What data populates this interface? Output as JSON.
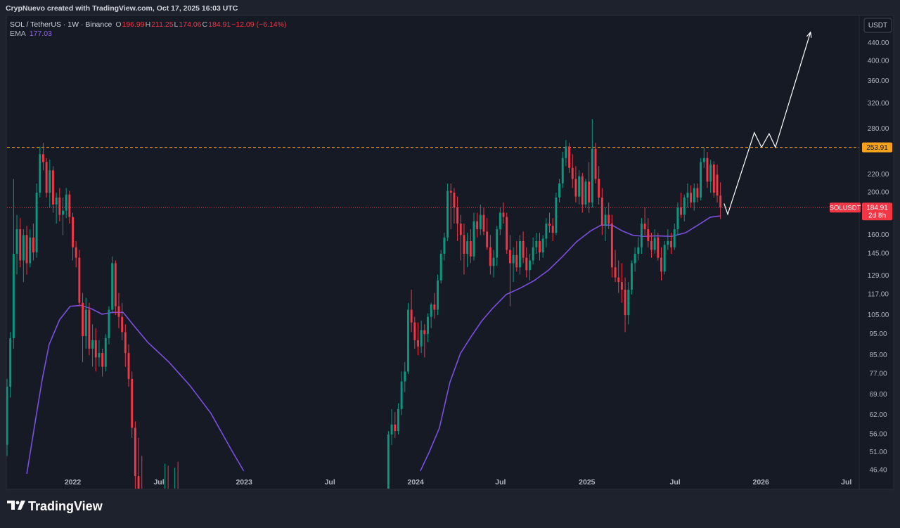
{
  "header": "CrypNuevo created with TradingView.com, Oct 17, 2025 16:03 UTC",
  "footer": {
    "brand": "TradingView"
  },
  "chart_data": {
    "type": "candlestick",
    "symbol": "SOL / TetherUS · 1W · Binance",
    "ohlc_letters": [
      "O",
      "H",
      "L",
      "C"
    ],
    "change": "−12.09 (−6.14%)",
    "indicator": "EMA",
    "currency": "USDT",
    "pair_label": "SOLUSDT",
    "countdown": "2d 8h",
    "up_color": "#089981",
    "down_color": "#f23645",
    "log_scale": true,
    "grid": false,
    "xlim": [
      0,
      259.2
    ],
    "ylim": [
      42.1,
      503
    ],
    "xticks": [
      {
        "value": 20,
        "label": "2022"
      },
      {
        "value": 46.2,
        "label": "Jul"
      },
      {
        "value": 72.1,
        "label": "2023"
      },
      {
        "value": 98.2,
        "label": "Jul"
      },
      {
        "value": 124.3,
        "label": "2024"
      },
      {
        "value": 150.1,
        "label": "Jul"
      },
      {
        "value": 176.4,
        "label": "2025"
      },
      {
        "value": 203.2,
        "label": "Jul"
      },
      {
        "value": 229.3,
        "label": "2026"
      },
      {
        "value": 255.3,
        "label": "Jul"
      }
    ],
    "yticks": [
      {
        "value": 440,
        "label": "440.00"
      },
      {
        "value": 400,
        "label": "400.00"
      },
      {
        "value": 360,
        "label": "360.00"
      },
      {
        "value": 320,
        "label": "320.00"
      },
      {
        "value": 280,
        "label": "280.00"
      },
      {
        "value": 220,
        "label": "220.00"
      },
      {
        "value": 200,
        "label": "200.00"
      },
      {
        "value": 160,
        "label": "160.00"
      },
      {
        "value": 145,
        "label": "145.00"
      },
      {
        "value": 129,
        "label": "129.00"
      },
      {
        "value": 117,
        "label": "117.00"
      },
      {
        "value": 105,
        "label": "105.00"
      },
      {
        "value": 95,
        "label": "95.00"
      },
      {
        "value": 85,
        "label": "85.00"
      },
      {
        "value": 77,
        "label": "77.00"
      },
      {
        "value": 69,
        "label": "69.00"
      },
      {
        "value": 62,
        "label": "62.00"
      },
      {
        "value": 56,
        "label": "56.00"
      },
      {
        "value": 51,
        "label": "51.00"
      },
      {
        "value": 46.4,
        "label": "46.40"
      }
    ],
    "resistance": 253.91,
    "resistance_color": "#f7a21b",
    "ohlc": [
      [
        53,
        75,
        50,
        72
      ],
      [
        72,
        96,
        68,
        93
      ],
      [
        93,
        215,
        88,
        145
      ],
      [
        145,
        178,
        130,
        165
      ],
      [
        165,
        175,
        135,
        140
      ],
      [
        140,
        165,
        125,
        160
      ],
      [
        160,
        168,
        130,
        138
      ],
      [
        138,
        165,
        135,
        158
      ],
      [
        158,
        170,
        140,
        146
      ],
      [
        146,
        210,
        142,
        200
      ],
      [
        200,
        255,
        195,
        245
      ],
      [
        245,
        260,
        225,
        235
      ],
      [
        235,
        240,
        195,
        200
      ],
      [
        200,
        238,
        185,
        225
      ],
      [
        225,
        230,
        180,
        188
      ],
      [
        188,
        200,
        170,
        195
      ],
      [
        195,
        205,
        172,
        178
      ],
      [
        178,
        195,
        160,
        182
      ],
      [
        182,
        205,
        175,
        198
      ],
      [
        198,
        202,
        170,
        176
      ],
      [
        176,
        180,
        140,
        150
      ],
      [
        150,
        155,
        135,
        142
      ],
      [
        142,
        148,
        110,
        112
      ],
      [
        112,
        118,
        82,
        94
      ],
      [
        94,
        115,
        88,
        108
      ],
      [
        108,
        112,
        85,
        88
      ],
      [
        88,
        100,
        80,
        92
      ],
      [
        92,
        98,
        78,
        84
      ],
      [
        84,
        92,
        80,
        86
      ],
      [
        86,
        88,
        76,
        80
      ],
      [
        80,
        95,
        78,
        93
      ],
      [
        93,
        110,
        90,
        108
      ],
      [
        108,
        143,
        106,
        138
      ],
      [
        138,
        140,
        105,
        110
      ],
      [
        110,
        118,
        98,
        104
      ],
      [
        104,
        112,
        92,
        96
      ],
      [
        96,
        100,
        80,
        86
      ],
      [
        86,
        90,
        72,
        75
      ],
      [
        75,
        78,
        55,
        58
      ],
      [
        58,
        60,
        40,
        45
      ],
      [
        45,
        55,
        38,
        42
      ],
      [
        42,
        50,
        30,
        35
      ],
      null,
      null,
      null,
      null,
      null,
      null,
      [
        35,
        48,
        31,
        40
      ],
      [
        40,
        47.5,
        36,
        38
      ],
      null,
      [
        38,
        47,
        34,
        42
      ],
      [
        42,
        48.5,
        38,
        41
      ],
      null,
      null,
      null,
      null,
      null,
      null,
      null,
      null,
      null,
      null,
      null,
      null,
      null,
      null,
      null,
      null,
      null,
      null,
      null,
      null,
      null,
      null,
      null,
      null,
      null,
      null,
      null,
      null,
      null,
      null,
      null,
      null,
      null,
      null,
      null,
      null,
      null,
      null,
      null,
      null,
      null,
      null,
      null,
      null,
      null,
      null,
      null,
      null,
      null,
      null,
      null,
      null,
      null,
      null,
      null,
      null,
      null,
      null,
      null,
      null,
      null,
      null,
      null,
      [
        40,
        57,
        39,
        56
      ],
      [
        56,
        64,
        53,
        59
      ],
      [
        59,
        63,
        55,
        57
      ],
      [
        57,
        66,
        56,
        64
      ],
      [
        64,
        78,
        62,
        74
      ],
      [
        74,
        82,
        70,
        78
      ],
      [
        78,
        112,
        77,
        108
      ],
      [
        108,
        120,
        96,
        101
      ],
      [
        101,
        104,
        88,
        92
      ],
      [
        92,
        101,
        85,
        89
      ],
      [
        89,
        102,
        86,
        97
      ],
      [
        97,
        100,
        84,
        95
      ],
      [
        95,
        106,
        91,
        104
      ],
      [
        104,
        112,
        98,
        111
      ],
      [
        111,
        118,
        103,
        108
      ],
      [
        108,
        130,
        105,
        126
      ],
      [
        126,
        148,
        124,
        145
      ],
      [
        145,
        162,
        140,
        158
      ],
      [
        158,
        210,
        155,
        202
      ],
      [
        202,
        210,
        165,
        200
      ],
      [
        200,
        205,
        170,
        185
      ],
      [
        185,
        196,
        155,
        170
      ],
      [
        170,
        178,
        140,
        160
      ],
      [
        160,
        170,
        130,
        145
      ],
      [
        145,
        162,
        135,
        155
      ],
      [
        155,
        165,
        138,
        143
      ],
      [
        143,
        180,
        140,
        172
      ],
      [
        172,
        180,
        158,
        165
      ],
      [
        165,
        188,
        160,
        178
      ],
      [
        178,
        185,
        160,
        163
      ],
      [
        163,
        175,
        148,
        150
      ],
      [
        150,
        160,
        130,
        136
      ],
      [
        136,
        148,
        128,
        142
      ],
      [
        142,
        168,
        136,
        165
      ],
      [
        165,
        185,
        160,
        180
      ],
      [
        180,
        190,
        170,
        176
      ],
      [
        176,
        180,
        145,
        148
      ],
      [
        148,
        160,
        110,
        138
      ],
      [
        138,
        150,
        125,
        144
      ],
      [
        144,
        155,
        132,
        135
      ],
      [
        135,
        160,
        130,
        155
      ],
      [
        155,
        163,
        138,
        142
      ],
      [
        142,
        150,
        128,
        133
      ],
      [
        133,
        145,
        126,
        140
      ],
      [
        140,
        158,
        137,
        150
      ],
      [
        150,
        162,
        145,
        155
      ],
      [
        155,
        162,
        140,
        146
      ],
      [
        146,
        160,
        142,
        157
      ],
      [
        157,
        175,
        150,
        170
      ],
      [
        170,
        180,
        162,
        168
      ],
      [
        168,
        175,
        155,
        162
      ],
      [
        162,
        200,
        160,
        195
      ],
      [
        195,
        215,
        190,
        210
      ],
      [
        210,
        248,
        205,
        240
      ],
      [
        240,
        264,
        230,
        255
      ],
      [
        255,
        260,
        222,
        228
      ],
      [
        228,
        245,
        205,
        215
      ],
      [
        215,
        230,
        190,
        196
      ],
      [
        196,
        225,
        188,
        218
      ],
      [
        218,
        222,
        180,
        188
      ],
      [
        188,
        215,
        185,
        212
      ],
      [
        212,
        235,
        180,
        190
      ],
      [
        190,
        295,
        185,
        252
      ],
      [
        252,
        260,
        210,
        215
      ],
      [
        215,
        230,
        188,
        195
      ],
      [
        195,
        205,
        160,
        168
      ],
      [
        168,
        185,
        155,
        178
      ],
      [
        178,
        190,
        165,
        170
      ],
      [
        170,
        178,
        128,
        135
      ],
      [
        135,
        148,
        125,
        128
      ],
      [
        128,
        140,
        118,
        125
      ],
      [
        125,
        138,
        112,
        120
      ],
      [
        120,
        128,
        96,
        105
      ],
      [
        105,
        125,
        100,
        120
      ],
      [
        120,
        140,
        117,
        138
      ],
      [
        138,
        150,
        132,
        145
      ],
      [
        145,
        158,
        140,
        150
      ],
      [
        150,
        175,
        145,
        170
      ],
      [
        170,
        185,
        160,
        165
      ],
      [
        165,
        175,
        150,
        155
      ],
      [
        155,
        162,
        142,
        148
      ],
      [
        148,
        165,
        145,
        158
      ],
      [
        158,
        162,
        140,
        142
      ],
      [
        142,
        150,
        126,
        132
      ],
      [
        132,
        155,
        130,
        152
      ],
      [
        152,
        165,
        148,
        155
      ],
      [
        155,
        162,
        145,
        150
      ],
      [
        150,
        170,
        148,
        165
      ],
      [
        165,
        190,
        160,
        185
      ],
      [
        185,
        200,
        175,
        178
      ],
      [
        178,
        198,
        172,
        195
      ],
      [
        195,
        210,
        185,
        200
      ],
      [
        200,
        208,
        185,
        190
      ],
      [
        190,
        210,
        182,
        205
      ],
      [
        205,
        210,
        190,
        195
      ],
      [
        195,
        240,
        192,
        235
      ],
      [
        235,
        254,
        228,
        240
      ],
      [
        240,
        248,
        205,
        212
      ],
      [
        212,
        238,
        200,
        232
      ],
      [
        232,
        236,
        195,
        200
      ],
      [
        220,
        232,
        190,
        197
      ],
      [
        196.99,
        211.25,
        174.06,
        184.91
      ]
    ],
    "ema": {
      "color": "#7b4fe0",
      "x": [
        6,
        8.6,
        10.7,
        12.8,
        16,
        19.2,
        22.5,
        25.7,
        28.9,
        32,
        35.3,
        38.5,
        42.8,
        49.2,
        55.6,
        62,
        68.4,
        72,
        100,
        125.7,
        128.3,
        131.5,
        134.7,
        137.9,
        141.1,
        144.4,
        147.6,
        151.8,
        156.1,
        160.4,
        164.7,
        169,
        173.2,
        177.5,
        180.7,
        184,
        187.1,
        190.3,
        193.5,
        197.8,
        202.1,
        206.4,
        210.6,
        213.9,
        217
      ],
      "values": [
        45.5,
        60,
        74.8,
        90,
        102.5,
        110,
        110.5,
        108.5,
        105.5,
        106.5,
        106.5,
        99.5,
        91,
        82,
        72.5,
        62.6,
        51.4,
        46.2,
        null,
        46.2,
        50.8,
        57.9,
        73.6,
        85.8,
        93.6,
        101.8,
        108.6,
        117,
        121,
        126,
        133,
        143,
        154.4,
        163.6,
        168.6,
        168.6,
        163.6,
        159.9,
        158.9,
        159.4,
        158.9,
        162,
        169.5,
        175.8,
        177.03
      ]
    },
    "projection": {
      "color": "#ffffff",
      "x": [
        218.1,
        219.2,
        227.3,
        229.5,
        231.8,
        233.7,
        244.4
      ],
      "values": [
        189,
        178.6,
        274.5,
        254,
        273,
        254,
        466
      ]
    }
  }
}
